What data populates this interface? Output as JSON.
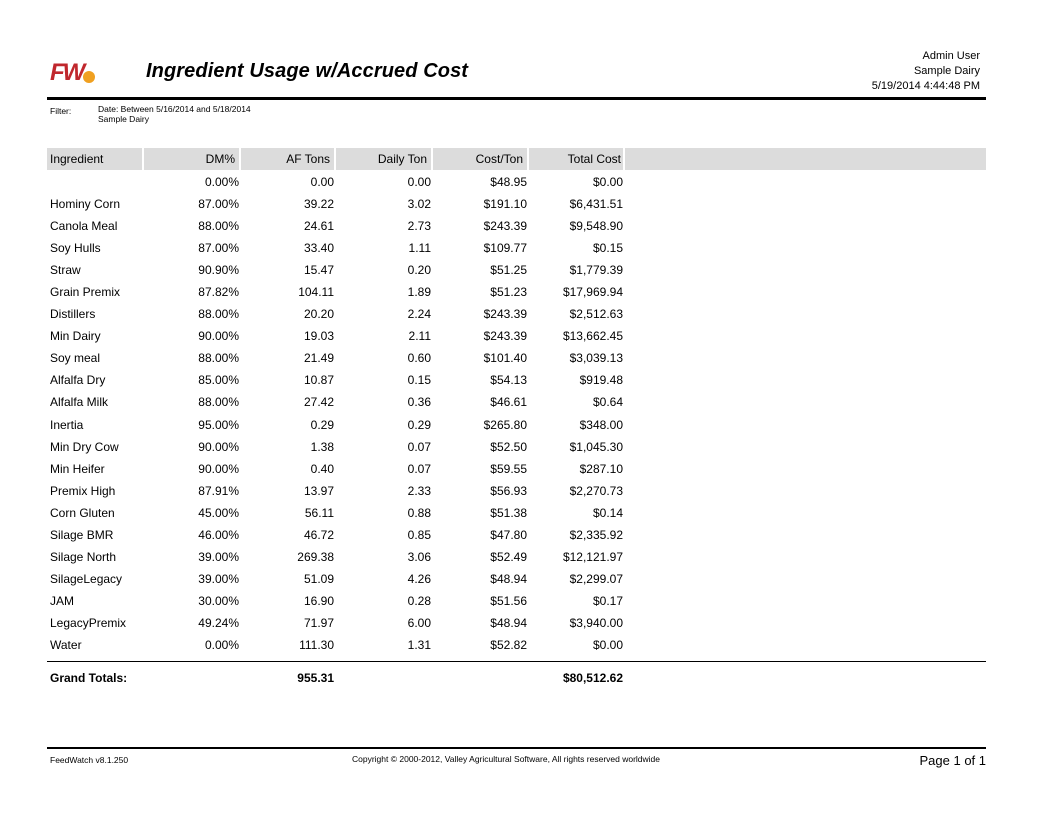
{
  "header": {
    "title": "Ingredient Usage w/Accrued Cost",
    "user": "Admin User",
    "dairy": "Sample Dairy",
    "datetime": "5/19/2014 4:44:48 PM",
    "logo_text": "FW",
    "logo_colors": {
      "letters": "#c0272d",
      "dot": "#f0a020"
    }
  },
  "filter": {
    "label": "Filter:",
    "date_line": "Date: Between 5/16/2014 and 5/18/2014",
    "dairy_line": "Sample Dairy"
  },
  "table": {
    "header_bg": "#dcdcdc",
    "columns": {
      "ingredient": "Ingredient",
      "dm": "DM%",
      "af_tons": "AF Tons",
      "daily_ton": "Daily Ton",
      "cost_ton": "Cost/Ton",
      "total_cost": "Total Cost"
    },
    "rows": [
      {
        "ingredient": "",
        "dm": "0.00%",
        "af_tons": "0.00",
        "daily_ton": "0.00",
        "cost_ton": "$48.95",
        "total_cost": "$0.00"
      },
      {
        "ingredient": "Hominy Corn",
        "dm": "87.00%",
        "af_tons": "39.22",
        "daily_ton": "3.02",
        "cost_ton": "$191.10",
        "total_cost": "$6,431.51"
      },
      {
        "ingredient": "Canola Meal",
        "dm": "88.00%",
        "af_tons": "24.61",
        "daily_ton": "2.73",
        "cost_ton": "$243.39",
        "total_cost": "$9,548.90"
      },
      {
        "ingredient": "Soy Hulls",
        "dm": "87.00%",
        "af_tons": "33.40",
        "daily_ton": "1.11",
        "cost_ton": "$109.77",
        "total_cost": "$0.15"
      },
      {
        "ingredient": "Straw",
        "dm": "90.90%",
        "af_tons": "15.47",
        "daily_ton": "0.20",
        "cost_ton": "$51.25",
        "total_cost": "$1,779.39"
      },
      {
        "ingredient": "Grain Premix",
        "dm": "87.82%",
        "af_tons": "104.11",
        "daily_ton": "1.89",
        "cost_ton": "$51.23",
        "total_cost": "$17,969.94"
      },
      {
        "ingredient": "Distillers",
        "dm": "88.00%",
        "af_tons": "20.20",
        "daily_ton": "2.24",
        "cost_ton": "$243.39",
        "total_cost": "$2,512.63"
      },
      {
        "ingredient": "Min Dairy",
        "dm": "90.00%",
        "af_tons": "19.03",
        "daily_ton": "2.11",
        "cost_ton": "$243.39",
        "total_cost": "$13,662.45"
      },
      {
        "ingredient": "Soy meal",
        "dm": "88.00%",
        "af_tons": "21.49",
        "daily_ton": "0.60",
        "cost_ton": "$101.40",
        "total_cost": "$3,039.13"
      },
      {
        "ingredient": "Alfalfa Dry",
        "dm": "85.00%",
        "af_tons": "10.87",
        "daily_ton": "0.15",
        "cost_ton": "$54.13",
        "total_cost": "$919.48"
      },
      {
        "ingredient": "Alfalfa Milk",
        "dm": "88.00%",
        "af_tons": "27.42",
        "daily_ton": "0.36",
        "cost_ton": "$46.61",
        "total_cost": "$0.64"
      },
      {
        "ingredient": "Inertia",
        "dm": "95.00%",
        "af_tons": "0.29",
        "daily_ton": "0.29",
        "cost_ton": "$265.80",
        "total_cost": "$348.00"
      },
      {
        "ingredient": "Min Dry Cow",
        "dm": "90.00%",
        "af_tons": "1.38",
        "daily_ton": "0.07",
        "cost_ton": "$52.50",
        "total_cost": "$1,045.30"
      },
      {
        "ingredient": "Min Heifer",
        "dm": "90.00%",
        "af_tons": "0.40",
        "daily_ton": "0.07",
        "cost_ton": "$59.55",
        "total_cost": "$287.10"
      },
      {
        "ingredient": "Premix High",
        "dm": "87.91%",
        "af_tons": "13.97",
        "daily_ton": "2.33",
        "cost_ton": "$56.93",
        "total_cost": "$2,270.73"
      },
      {
        "ingredient": "Corn Gluten",
        "dm": "45.00%",
        "af_tons": "56.11",
        "daily_ton": "0.88",
        "cost_ton": "$51.38",
        "total_cost": "$0.14"
      },
      {
        "ingredient": "Silage BMR",
        "dm": "46.00%",
        "af_tons": "46.72",
        "daily_ton": "0.85",
        "cost_ton": "$47.80",
        "total_cost": "$2,335.92"
      },
      {
        "ingredient": "Silage North",
        "dm": "39.00%",
        "af_tons": "269.38",
        "daily_ton": "3.06",
        "cost_ton": "$52.49",
        "total_cost": "$12,121.97"
      },
      {
        "ingredient": "SilageLegacy",
        "dm": "39.00%",
        "af_tons": "51.09",
        "daily_ton": "4.26",
        "cost_ton": "$48.94",
        "total_cost": "$2,299.07"
      },
      {
        "ingredient": "JAM",
        "dm": "30.00%",
        "af_tons": "16.90",
        "daily_ton": "0.28",
        "cost_ton": "$51.56",
        "total_cost": "$0.17"
      },
      {
        "ingredient": "LegacyPremix",
        "dm": "49.24%",
        "af_tons": "71.97",
        "daily_ton": "6.00",
        "cost_ton": "$48.94",
        "total_cost": "$3,940.00"
      },
      {
        "ingredient": "Water",
        "dm": "0.00%",
        "af_tons": "111.30",
        "daily_ton": "1.31",
        "cost_ton": "$52.82",
        "total_cost": "$0.00"
      }
    ],
    "totals": {
      "label": "Grand Totals:",
      "af_tons": "955.31",
      "total_cost": "$80,512.62"
    }
  },
  "footer": {
    "version": "FeedWatch v8.1.250",
    "copyright": "Copyright © 2000-2012, Valley Agricultural Software, All rights reserved worldwide",
    "page": "Page 1 of 1"
  }
}
